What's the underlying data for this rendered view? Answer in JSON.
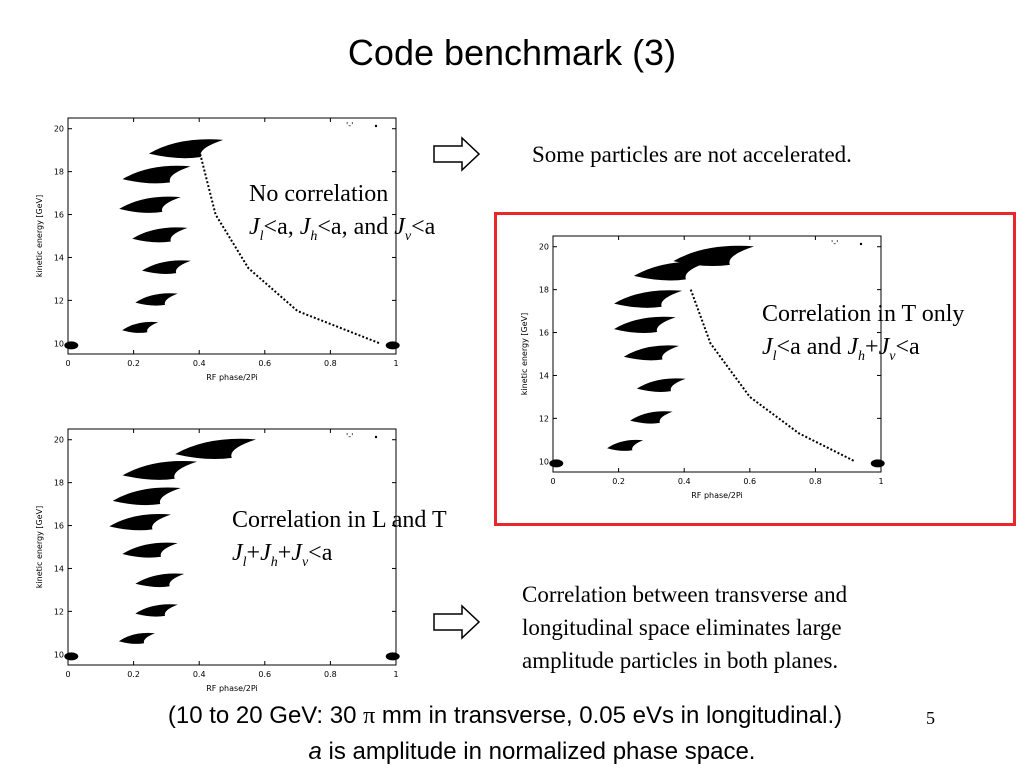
{
  "slide": {
    "title": "Code benchmark (3)",
    "page_number": "5",
    "footer_line1_pre": "(10 to 20 GeV: 30 ",
    "footer_line1_pi": "π",
    "footer_line1_post": " mm in transverse, 0.05 eVs in longitudinal.)",
    "footer_line2_a": "a",
    "footer_line2_rest": " is amplitude in normalized phase space."
  },
  "notes": {
    "not_accelerated": "Some particles are not accelerated.",
    "correlation_text_1": "Correlation between transverse and",
    "correlation_text_2": "longitudinal space eliminates large",
    "correlation_text_3": "amplitude particles in both planes."
  },
  "labels": {
    "no_corr_title": "No correlation",
    "no_corr_J1": "J",
    "no_corr_s1": "l",
    "no_corr_t1": "<a, ",
    "no_corr_J2": "J",
    "no_corr_s2": "h",
    "no_corr_t2": "<a, and ",
    "no_corr_J3": "J",
    "no_corr_s3": "v",
    "no_corr_t3": "<a",
    "t_only_title": "Correlation in T only",
    "t_only_J1": "J",
    "t_only_s1": "l",
    "t_only_t1": "<a and ",
    "t_only_J2": "J",
    "t_only_s2": "h",
    "t_only_t2": "+",
    "t_only_J3": "J",
    "t_only_s3": "v",
    "t_only_t3": "<a",
    "lt_title": "Correlation in L and T",
    "lt_J1": "J",
    "lt_s1": "l",
    "lt_t1": "+",
    "lt_J2": "J",
    "lt_s2": "h",
    "lt_t2": "+",
    "lt_J3": "J",
    "lt_s3": "v",
    "lt_t3": "<a"
  },
  "colors": {
    "accent_box": "#e8262b",
    "particles": "#000000"
  },
  "chart_data": [
    {
      "type": "scatter",
      "panel": "no-correlation",
      "title": "",
      "xlabel": "RF phase/2Pi",
      "ylabel": "kinetic energy [GeV]",
      "xlim": [
        0,
        1
      ],
      "ylim": [
        9.5,
        20.5
      ],
      "xticks": [
        "0",
        "0.2",
        "0.4",
        "0.6",
        "0.8",
        "1"
      ],
      "yticks": [
        "10",
        "12",
        "14",
        "16",
        "18",
        "20"
      ],
      "legend_text": "'-' ",
      "bunches": [
        {
          "x": 0.22,
          "y": 10.7
        },
        {
          "x": 0.27,
          "y": 12.0
        },
        {
          "x": 0.3,
          "y": 13.5
        },
        {
          "x": 0.28,
          "y": 15.0
        },
        {
          "x": 0.25,
          "y": 16.4
        },
        {
          "x": 0.27,
          "y": 17.8
        },
        {
          "x": 0.36,
          "y": 19.0
        }
      ],
      "tail": [
        [
          0.4,
          19.0
        ],
        [
          0.45,
          16.0
        ],
        [
          0.55,
          13.5
        ],
        [
          0.7,
          11.5
        ],
        [
          0.95,
          10.0
        ]
      ],
      "edge_clusters": [
        {
          "x": 0.01,
          "y": 9.9
        },
        {
          "x": 0.99,
          "y": 9.9
        }
      ]
    },
    {
      "type": "scatter",
      "panel": "correlation-t-only",
      "title": "",
      "xlabel": "RF phase/2Pi",
      "ylabel": "kinetic energy [GeV]",
      "xlim": [
        0,
        1
      ],
      "ylim": [
        9.5,
        20.5
      ],
      "xticks": [
        "0",
        "0.2",
        "0.4",
        "0.6",
        "0.8",
        "1"
      ],
      "yticks": [
        "10",
        "12",
        "14",
        "16",
        "18",
        "20"
      ],
      "legend_text": "'-' ",
      "bunches": [
        {
          "x": 0.22,
          "y": 10.7
        },
        {
          "x": 0.3,
          "y": 12.0
        },
        {
          "x": 0.33,
          "y": 13.5
        },
        {
          "x": 0.3,
          "y": 15.0
        },
        {
          "x": 0.28,
          "y": 16.3
        },
        {
          "x": 0.29,
          "y": 17.5
        },
        {
          "x": 0.36,
          "y": 18.8
        },
        {
          "x": 0.49,
          "y": 19.5
        }
      ],
      "tail": [
        [
          0.42,
          18.0
        ],
        [
          0.48,
          15.5
        ],
        [
          0.6,
          13.0
        ],
        [
          0.75,
          11.3
        ],
        [
          0.92,
          10.0
        ]
      ],
      "edge_clusters": [
        {
          "x": 0.01,
          "y": 9.9
        },
        {
          "x": 0.99,
          "y": 9.9
        }
      ]
    },
    {
      "type": "scatter",
      "panel": "correlation-l-and-t",
      "title": "",
      "xlabel": "RF phase/2Pi",
      "ylabel": "kinetic energy [GeV]",
      "xlim": [
        0,
        1
      ],
      "ylim": [
        9.5,
        20.5
      ],
      "xticks": [
        "0",
        "0.2",
        "0.4",
        "0.6",
        "0.8",
        "1"
      ],
      "yticks": [
        "10",
        "12",
        "14",
        "16",
        "18",
        "20"
      ],
      "legend_text": "'-' ",
      "bunches": [
        {
          "x": 0.21,
          "y": 10.7
        },
        {
          "x": 0.27,
          "y": 12.0
        },
        {
          "x": 0.28,
          "y": 13.4
        },
        {
          "x": 0.25,
          "y": 14.8
        },
        {
          "x": 0.22,
          "y": 16.1
        },
        {
          "x": 0.24,
          "y": 17.3
        },
        {
          "x": 0.28,
          "y": 18.5
        },
        {
          "x": 0.45,
          "y": 19.5
        }
      ],
      "tail": [],
      "edge_clusters": [
        {
          "x": 0.01,
          "y": 9.9
        },
        {
          "x": 0.99,
          "y": 9.9
        }
      ]
    }
  ]
}
